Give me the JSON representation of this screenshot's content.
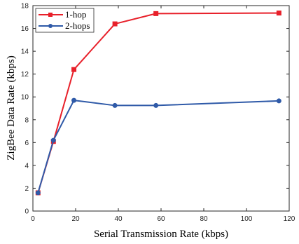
{
  "chart_data": {
    "type": "line",
    "xlabel": "Serial Transmission Rate (kbps)",
    "ylabel": "ZigBee Data Rate (kbps)",
    "xlim": [
      0,
      120
    ],
    "ylim": [
      0,
      18
    ],
    "x_ticks": [
      0,
      20,
      40,
      60,
      80,
      100,
      120
    ],
    "y_ticks": [
      0,
      2,
      4,
      6,
      8,
      10,
      12,
      14,
      16,
      18
    ],
    "grid": false,
    "legend_position": "top-left",
    "x": [
      2.4,
      9.6,
      19.2,
      38.4,
      57.6,
      115.2
    ],
    "series": [
      {
        "name": "1-hop",
        "values": [
          1.6,
          6.1,
          12.4,
          16.4,
          17.3,
          17.35
        ],
        "color": "#e8202a",
        "marker": "square"
      },
      {
        "name": "2-hops",
        "values": [
          1.6,
          6.2,
          9.7,
          9.25,
          9.25,
          9.65
        ],
        "color": "#2f5aa8",
        "marker": "circle"
      }
    ]
  }
}
